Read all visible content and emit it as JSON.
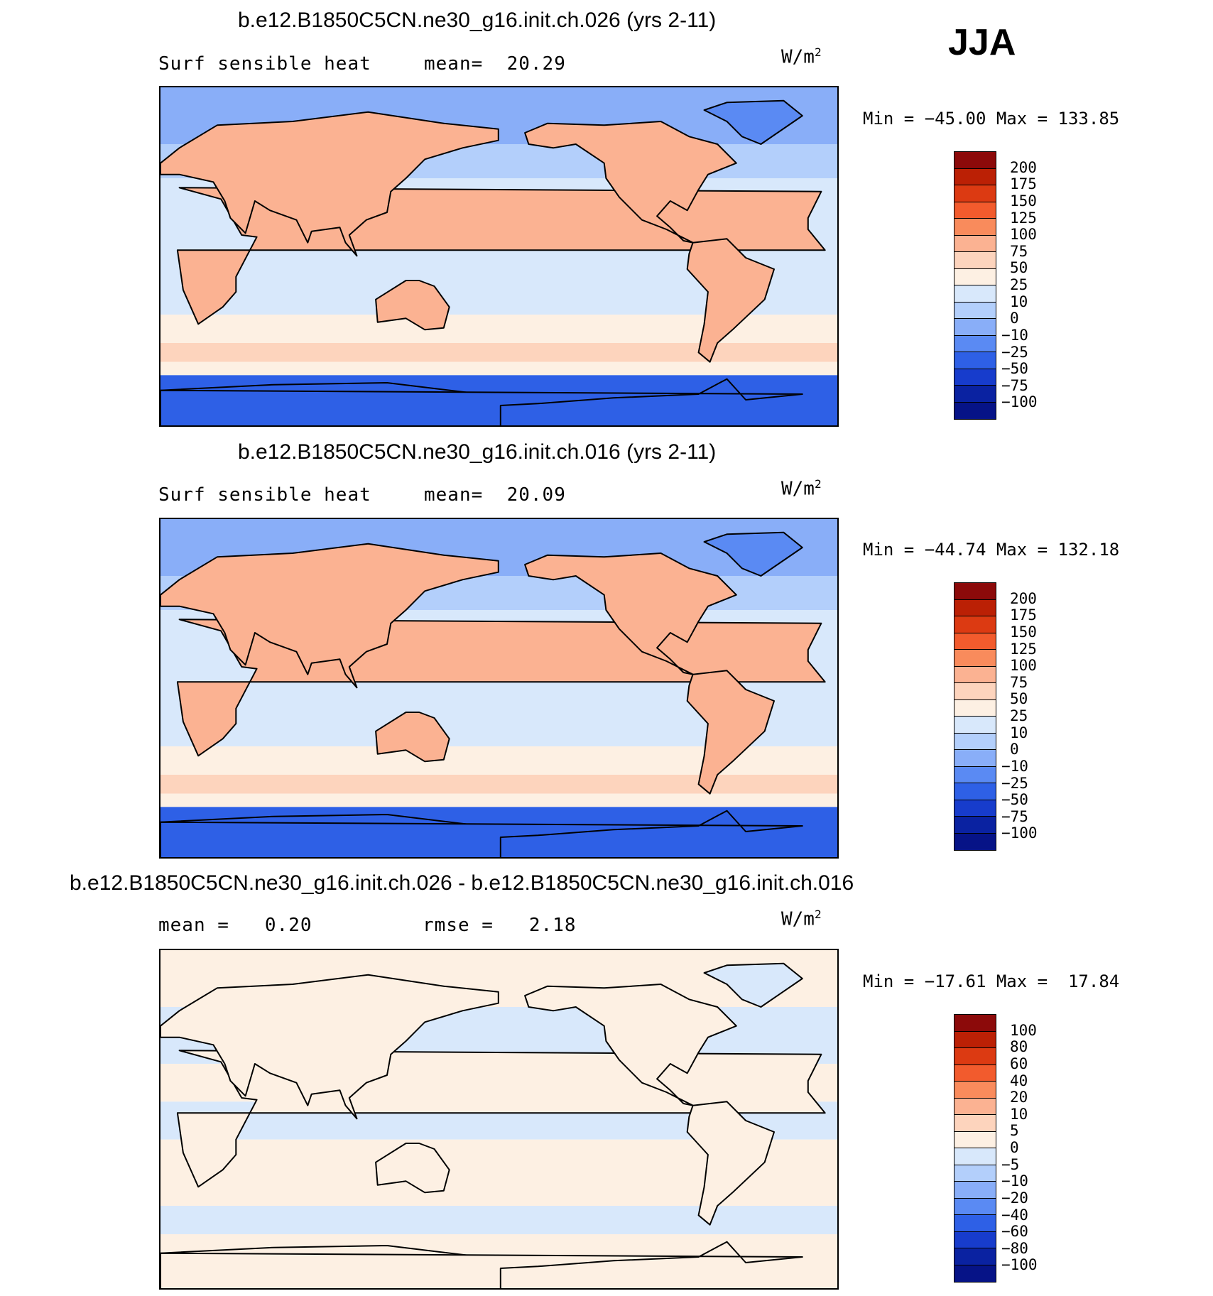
{
  "season": "JJA",
  "panels": [
    {
      "title": "b.e12.B1850C5CN.ne30_g16.init.ch.026 (yrs 2-11)",
      "left_label": "Surf sensible heat",
      "mid_label": "mean=",
      "mid_value": "20.29",
      "units": "W/m",
      "units_sup": "2",
      "minmax": "Min = −45.00 Max = 133.85",
      "levels": [
        "200",
        "175",
        "150",
        "125",
        "100",
        "75",
        "50",
        "25",
        "10",
        "0",
        "−10",
        "−25",
        "−50",
        "−75",
        "−100"
      ],
      "colors": [
        "#8c0a0a",
        "#bb2005",
        "#dc3a12",
        "#f25b2d",
        "#f98b5c",
        "#fbb292",
        "#fdd4bd",
        "#fdf0e3",
        "#d8e8fb",
        "#b3cffb",
        "#89aef8",
        "#5a8af3",
        "#2e60e6",
        "#173ccc",
        "#0a22a1",
        "#061387"
      ],
      "map_palette": "abs"
    },
    {
      "title": "b.e12.B1850C5CN.ne30_g16.init.ch.016 (yrs 2-11)",
      "left_label": "Surf sensible heat",
      "mid_label": "mean=",
      "mid_value": "20.09",
      "units": "W/m",
      "units_sup": "2",
      "minmax": "Min = −44.74 Max = 132.18",
      "levels": [
        "200",
        "175",
        "150",
        "125",
        "100",
        "75",
        "50",
        "25",
        "10",
        "0",
        "−10",
        "−25",
        "−50",
        "−75",
        "−100"
      ],
      "colors": [
        "#8c0a0a",
        "#bb2005",
        "#dc3a12",
        "#f25b2d",
        "#f98b5c",
        "#fbb292",
        "#fdd4bd",
        "#fdf0e3",
        "#d8e8fb",
        "#b3cffb",
        "#89aef8",
        "#5a8af3",
        "#2e60e6",
        "#173ccc",
        "#0a22a1",
        "#061387"
      ],
      "map_palette": "abs"
    },
    {
      "title": "b.e12.B1850C5CN.ne30_g16.init.ch.026 - b.e12.B1850C5CN.ne30_g16.init.ch.016",
      "left_label": "mean =",
      "left_value": "0.20",
      "mid_label": "rmse =",
      "mid_value": "2.18",
      "units": "W/m",
      "units_sup": "2",
      "minmax": "Min = −17.61 Max =  17.84",
      "levels": [
        "100",
        "80",
        "60",
        "40",
        "20",
        "10",
        "5",
        "0",
        "−5",
        "−10",
        "−20",
        "−40",
        "−60",
        "−80",
        "−100"
      ],
      "colors": [
        "#8c0a0a",
        "#bb2005",
        "#dc3a12",
        "#f25b2d",
        "#f98b5c",
        "#fbb292",
        "#fdd4bd",
        "#fdf0e3",
        "#d8e8fb",
        "#b3cffb",
        "#89aef8",
        "#5a8af3",
        "#2e60e6",
        "#173ccc",
        "#0a22a1",
        "#061387"
      ],
      "map_palette": "diff"
    }
  ]
}
